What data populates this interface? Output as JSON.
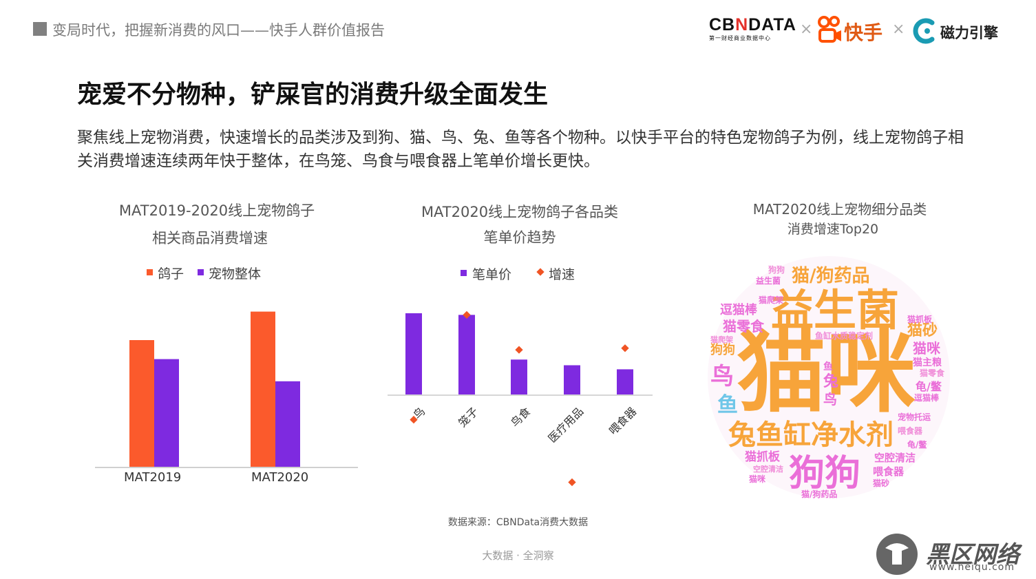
{
  "header": {
    "report_title": "变局时代，把握新消费的风口——快手人群价值报告",
    "logo_cbn_main": "CBNDATA",
    "logo_cbn_sub": "第一财经商业数据中心",
    "times1": "×",
    "times2": "×",
    "logo_kuaishou": "快手",
    "logo_cili": "磁力引擎"
  },
  "slide": {
    "title": "宠爱不分物种，铲屎官的消费升级全面发生",
    "description": "聚焦线上宠物消费，快速增长的品类涉及到狗、猫、鸟、兔、鱼等各个物种。以快手平台的特色宠物鸽子为例，线上宠物鸽子相关消费增速连续两年快于整体，在鸟笼、鸟食与喂食器上笔单价增长更快。"
  },
  "colors": {
    "orange": "#fb5a2c",
    "purple": "#7e2ae0",
    "diamond": "#f05424"
  },
  "chart_data": [
    {
      "type": "bar",
      "title_line1": "MAT2019-2020线上宠物鸽子",
      "title_line2": "相关商品消费增速",
      "categories": [
        "MAT2019",
        "MAT2020"
      ],
      "series": [
        {
          "name": "鸽子",
          "values": [
            0.8,
            0.98
          ]
        },
        {
          "name": "宠物整体",
          "values": [
            0.68,
            0.54
          ]
        }
      ]
    },
    {
      "type": "bar",
      "title_line1": "MAT2020线上宠物鸽子各品类",
      "title_line2": "笔单价趋势",
      "categories": [
        "鸟",
        "笼子",
        "鸟食",
        "医疗用品",
        "喂食器"
      ],
      "series": [
        {
          "name": "笔单价",
          "kind": "bar",
          "values": [
            1.0,
            0.98,
            0.43,
            0.36,
            0.31
          ]
        },
        {
          "name": "增速",
          "kind": "marker",
          "values": [
            -0.31,
            0.98,
            0.55,
            -1.08,
            0.57
          ]
        }
      ]
    },
    {
      "type": "wordcloud",
      "title_line1": "MAT2020线上宠物细分品类",
      "title_line2": "消费增速Top20",
      "words": [
        {
          "text": "猫咪",
          "color": "#f7a43a"
        },
        {
          "text": "益生菌",
          "color": "#f7a43a"
        },
        {
          "text": "兔鱼缸净水剂",
          "color": "#f7a43a"
        },
        {
          "text": "狗狗",
          "color": "#ea6fd8"
        },
        {
          "text": "猫/狗药品",
          "color": "#f7a43a"
        },
        {
          "text": "猫零食",
          "color": "#ea6fd8"
        },
        {
          "text": "逗猫棒",
          "color": "#ea6fd8"
        },
        {
          "text": "猫砂",
          "color": "#f7a43a"
        },
        {
          "text": "猫咪",
          "color": "#ea6fd8"
        },
        {
          "text": "鸟",
          "color": "#ea6fd8"
        },
        {
          "text": "鱼",
          "color": "#6fc6e8"
        },
        {
          "text": "兔",
          "color": "#ea6fd8"
        },
        {
          "text": "鸟",
          "color": "#ea6fd8"
        },
        {
          "text": "猫抓板",
          "color": "#ea6fd8"
        },
        {
          "text": "空腔清洁",
          "color": "#ea6fd8"
        },
        {
          "text": "喂食器",
          "color": "#ea6fd8"
        },
        {
          "text": "龟/鳖",
          "color": "#ea6fd8"
        },
        {
          "text": "鱼缸水质稳定剂",
          "color": "#f08cd8"
        },
        {
          "text": "狗狗",
          "color": "#f7a43a"
        },
        {
          "text": "猫主粮",
          "color": "#ea6fd8"
        },
        {
          "text": "猫零食",
          "color": "#f08cd8"
        },
        {
          "text": "宠物托运",
          "color": "#ea6fd8"
        },
        {
          "text": "猫抓板",
          "color": "#ea6fd8"
        },
        {
          "text": "逗猫棒",
          "color": "#ea6fd8"
        },
        {
          "text": "益生菌",
          "color": "#ea6fd8"
        },
        {
          "text": "猫/狗药品",
          "color": "#ea6fd8"
        },
        {
          "text": "猫砂",
          "color": "#ea6fd8"
        },
        {
          "text": "猫咪",
          "color": "#ea6fd8"
        },
        {
          "text": "鱼",
          "color": "#ea6fd8"
        },
        {
          "text": "猫爬架",
          "color": "#ea6fd8"
        },
        {
          "text": "喂食器",
          "color": "#f08cd8"
        },
        {
          "text": "空腔清洁",
          "color": "#f08cd8"
        },
        {
          "text": "龟/鳖",
          "color": "#ea6fd8"
        },
        {
          "text": "猫爬架",
          "color": "#f08cd8"
        },
        {
          "text": "狗狗",
          "color": "#f08cd8"
        }
      ]
    }
  ],
  "source": "数据来源：CBNData消费大数据",
  "footer": "大数据 · 全洞察",
  "watermark": {
    "text": "黑区网络",
    "url": "www.heiqu.com"
  }
}
